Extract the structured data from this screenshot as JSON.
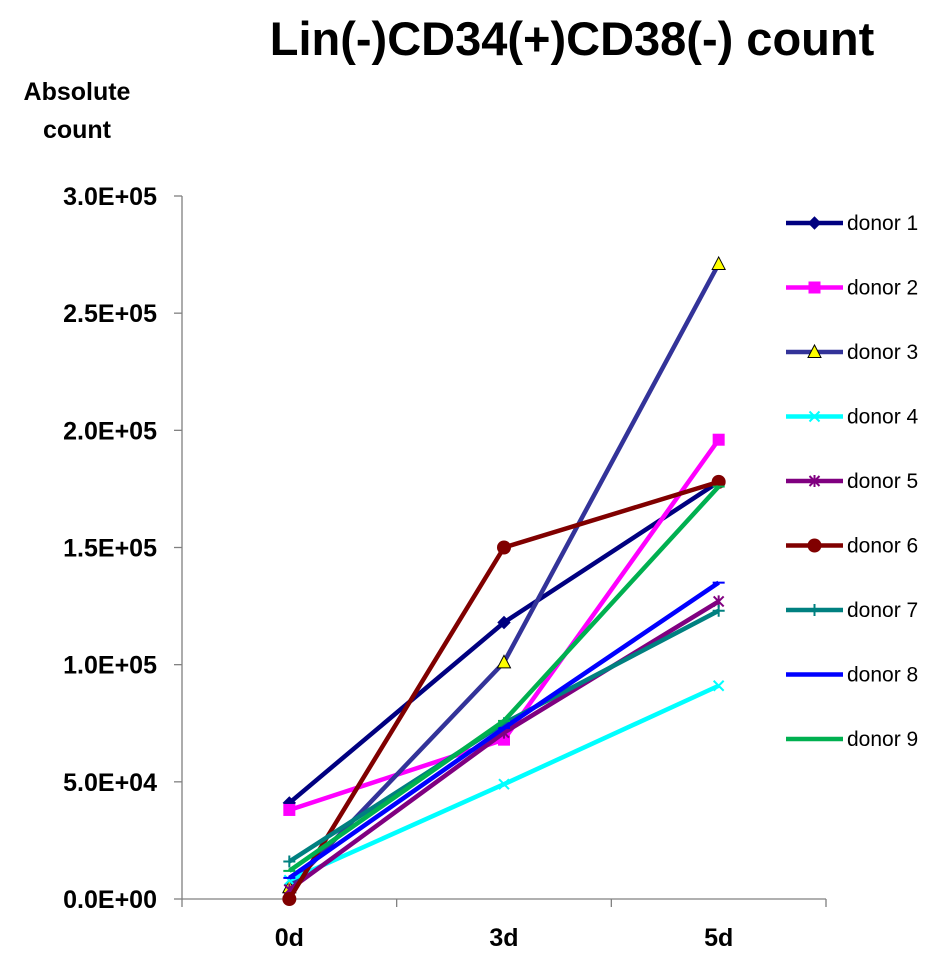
{
  "chart_data": {
    "type": "line",
    "title": "Lin(-)CD34(+)CD38(-) count",
    "ylabel": "Absolute count",
    "ylabel_lines": [
      "Absolute",
      "count"
    ],
    "xlabel": "",
    "categories": [
      "0d",
      "3d",
      "5d"
    ],
    "ylim": [
      0,
      300000
    ],
    "yticks": [
      0,
      50000,
      100000,
      150000,
      200000,
      250000,
      300000
    ],
    "ytick_labels": [
      "0.0E+00",
      "5.0E+04",
      "1.0E+05",
      "1.5E+05",
      "2.0E+05",
      "2.5E+05",
      "3.0E+05"
    ],
    "grid": false,
    "legend_position": "right",
    "series": [
      {
        "name": "donor 1",
        "values": [
          41000,
          118000,
          178000
        ],
        "color": "#000080",
        "marker": "diamond"
      },
      {
        "name": "donor 2",
        "values": [
          38000,
          68000,
          196000
        ],
        "color": "#ff00ff",
        "marker": "square"
      },
      {
        "name": "donor 3",
        "values": [
          5000,
          101000,
          271000
        ],
        "color": "#333399",
        "marker": "triangle",
        "marker_fill": "#ffff00"
      },
      {
        "name": "donor 4",
        "values": [
          8000,
          49000,
          91000
        ],
        "color": "#00ffff",
        "marker": "x"
      },
      {
        "name": "donor 5",
        "values": [
          4000,
          71000,
          127000
        ],
        "color": "#800080",
        "marker": "star"
      },
      {
        "name": "donor 6",
        "values": [
          0,
          150000,
          178000
        ],
        "color": "#800000",
        "marker": "circle"
      },
      {
        "name": "donor 7",
        "values": [
          16000,
          75000,
          123000
        ],
        "color": "#008080",
        "marker": "plus"
      },
      {
        "name": "donor 8",
        "values": [
          9000,
          73000,
          135000
        ],
        "color": "#0000ff",
        "marker": "dash"
      },
      {
        "name": "donor 9",
        "values": [
          12000,
          76000,
          176000
        ],
        "color": "#00b050",
        "marker": "dash"
      }
    ]
  }
}
